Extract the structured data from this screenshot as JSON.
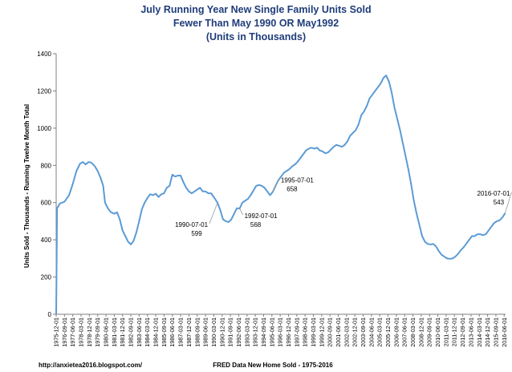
{
  "chart_data": {
    "type": "line",
    "title": [
      "July Running Year New Single Family Units Sold",
      "Fewer Than May 1990 OR May1992",
      "(Units in Thousands)"
    ],
    "ylabel": "Units Sold - Thousands - Running Twelve Month Total",
    "xlabel": "FRED Data New Home Sold - 1975-2016",
    "source_credit": "http://anxietea2016.blogspot.com/",
    "ylim": [
      0,
      1400
    ],
    "yticks": [
      "0",
      "200",
      "400",
      "600",
      "800",
      "1000",
      "1200",
      "1400"
    ],
    "grid": false,
    "xticks": [
      "1975-12-01",
      "1976-09-01",
      "1977-06-01",
      "1978-03-01",
      "1978-12-01",
      "1979-09-01",
      "1980-06-01",
      "1981-03-01",
      "1981-12-01",
      "1982-09-01",
      "1983-06-01",
      "1984-03-01",
      "1984-12-01",
      "1985-09-01",
      "1986-06-01",
      "1987-03-01",
      "1987-12-01",
      "1988-09-01",
      "1989-06-01",
      "1990-03-01",
      "1990-12-01",
      "1991-09-01",
      "1992-06-01",
      "1993-03-01",
      "1993-12-01",
      "1994-09-01",
      "1995-06-01",
      "1996-03-01",
      "1996-12-01",
      "1997-09-01",
      "1998-06-01",
      "1999-03-01",
      "1999-12-01",
      "2000-09-01",
      "2001-06-01",
      "2002-03-01",
      "2002-12-01",
      "2003-09-01",
      "2004-06-01",
      "2005-03-01",
      "2005-12-01",
      "2006-09-01",
      "2007-06-01",
      "2008-03-01",
      "2008-12-01",
      "2009-09-01",
      "2010-06-01",
      "2011-03-01",
      "2011-12-01",
      "2012-09-01",
      "2013-06-01",
      "2014-03-01",
      "2014-12-01",
      "2015-09-01",
      "2016-06-01"
    ],
    "series": [
      {
        "color": "#5b9bd5",
        "points": [
          [
            "1975-12",
            0
          ],
          [
            "1976-01",
            570
          ],
          [
            "1976-04",
            595
          ],
          [
            "1976-09",
            605
          ],
          [
            "1977-02",
            640
          ],
          [
            "1977-06",
            700
          ],
          [
            "1977-10",
            770
          ],
          [
            "1978-02",
            810
          ],
          [
            "1978-05",
            818
          ],
          [
            "1978-08",
            805
          ],
          [
            "1978-11",
            818
          ],
          [
            "1979-02",
            815
          ],
          [
            "1979-06",
            795
          ],
          [
            "1979-09",
            770
          ],
          [
            "1979-12",
            735
          ],
          [
            "1980-03",
            690
          ],
          [
            "1980-05",
            600
          ],
          [
            "1980-08",
            570
          ],
          [
            "1980-11",
            550
          ],
          [
            "1981-03",
            540
          ],
          [
            "1981-06",
            548
          ],
          [
            "1981-09",
            510
          ],
          [
            "1981-12",
            450
          ],
          [
            "1982-03",
            420
          ],
          [
            "1982-06",
            390
          ],
          [
            "1982-09",
            375
          ],
          [
            "1982-12",
            395
          ],
          [
            "1983-03",
            440
          ],
          [
            "1983-06",
            500
          ],
          [
            "1983-09",
            565
          ],
          [
            "1983-12",
            600
          ],
          [
            "1984-03",
            625
          ],
          [
            "1984-06",
            645
          ],
          [
            "1984-09",
            640
          ],
          [
            "1984-12",
            648
          ],
          [
            "1985-03",
            630
          ],
          [
            "1985-06",
            645
          ],
          [
            "1985-09",
            650
          ],
          [
            "1985-12",
            680
          ],
          [
            "1986-03",
            690
          ],
          [
            "1986-06",
            750
          ],
          [
            "1986-09",
            740
          ],
          [
            "1986-12",
            745
          ],
          [
            "1987-03",
            745
          ],
          [
            "1987-06",
            710
          ],
          [
            "1987-09",
            680
          ],
          [
            "1987-12",
            660
          ],
          [
            "1988-03",
            650
          ],
          [
            "1988-06",
            660
          ],
          [
            "1988-09",
            670
          ],
          [
            "1988-12",
            680
          ],
          [
            "1989-03",
            660
          ],
          [
            "1989-06",
            660
          ],
          [
            "1989-09",
            650
          ],
          [
            "1989-12",
            650
          ],
          [
            "1990-03",
            630
          ],
          [
            "1990-07",
            599
          ],
          [
            "1990-10",
            560
          ],
          [
            "1991-01",
            510
          ],
          [
            "1991-04",
            500
          ],
          [
            "1991-07",
            495
          ],
          [
            "1991-10",
            510
          ],
          [
            "1992-01",
            540
          ],
          [
            "1992-04",
            570
          ],
          [
            "1992-07",
            568
          ],
          [
            "1992-10",
            600
          ],
          [
            "1993-01",
            610
          ],
          [
            "1993-04",
            620
          ],
          [
            "1993-07",
            640
          ],
          [
            "1993-10",
            665
          ],
          [
            "1994-01",
            690
          ],
          [
            "1994-04",
            695
          ],
          [
            "1994-07",
            690
          ],
          [
            "1994-10",
            680
          ],
          [
            "1995-01",
            660
          ],
          [
            "1995-04",
            640
          ],
          [
            "1995-07",
            658
          ],
          [
            "1995-10",
            690
          ],
          [
            "1996-01",
            720
          ],
          [
            "1996-04",
            740
          ],
          [
            "1996-07",
            760
          ],
          [
            "1996-10",
            770
          ],
          [
            "1997-01",
            780
          ],
          [
            "1997-04",
            795
          ],
          [
            "1997-07",
            805
          ],
          [
            "1997-10",
            820
          ],
          [
            "1998-01",
            840
          ],
          [
            "1998-04",
            860
          ],
          [
            "1998-07",
            880
          ],
          [
            "1998-10",
            890
          ],
          [
            "1999-01",
            895
          ],
          [
            "1999-04",
            890
          ],
          [
            "1999-07",
            895
          ],
          [
            "1999-10",
            880
          ],
          [
            "2000-01",
            875
          ],
          [
            "2000-04",
            865
          ],
          [
            "2000-07",
            870
          ],
          [
            "2000-10",
            885
          ],
          [
            "2001-01",
            900
          ],
          [
            "2001-04",
            910
          ],
          [
            "2001-07",
            905
          ],
          [
            "2001-10",
            900
          ],
          [
            "2002-01",
            910
          ],
          [
            "2002-04",
            930
          ],
          [
            "2002-07",
            960
          ],
          [
            "2002-10",
            975
          ],
          [
            "2003-01",
            990
          ],
          [
            "2003-04",
            1020
          ],
          [
            "2003-07",
            1070
          ],
          [
            "2003-10",
            1090
          ],
          [
            "2004-01",
            1120
          ],
          [
            "2004-04",
            1160
          ],
          [
            "2004-07",
            1180
          ],
          [
            "2004-10",
            1200
          ],
          [
            "2005-01",
            1220
          ],
          [
            "2005-04",
            1240
          ],
          [
            "2005-07",
            1270
          ],
          [
            "2005-10",
            1283
          ],
          [
            "2006-01",
            1250
          ],
          [
            "2006-04",
            1190
          ],
          [
            "2006-07",
            1110
          ],
          [
            "2006-10",
            1050
          ],
          [
            "2007-01",
            990
          ],
          [
            "2007-04",
            920
          ],
          [
            "2007-07",
            850
          ],
          [
            "2007-10",
            780
          ],
          [
            "2008-01",
            700
          ],
          [
            "2008-04",
            610
          ],
          [
            "2008-07",
            540
          ],
          [
            "2008-10",
            480
          ],
          [
            "2009-01",
            420
          ],
          [
            "2009-04",
            390
          ],
          [
            "2009-07",
            378
          ],
          [
            "2009-10",
            375
          ],
          [
            "2010-01",
            378
          ],
          [
            "2010-04",
            365
          ],
          [
            "2010-07",
            340
          ],
          [
            "2010-10",
            320
          ],
          [
            "2011-01",
            310
          ],
          [
            "2011-04",
            300
          ],
          [
            "2011-07",
            298
          ],
          [
            "2011-10",
            300
          ],
          [
            "2012-01",
            310
          ],
          [
            "2012-04",
            325
          ],
          [
            "2012-07",
            345
          ],
          [
            "2012-10",
            360
          ],
          [
            "2013-01",
            380
          ],
          [
            "2013-04",
            400
          ],
          [
            "2013-07",
            420
          ],
          [
            "2013-10",
            420
          ],
          [
            "2014-01",
            430
          ],
          [
            "2014-04",
            430
          ],
          [
            "2014-07",
            425
          ],
          [
            "2014-10",
            430
          ],
          [
            "2015-01",
            450
          ],
          [
            "2015-04",
            470
          ],
          [
            "2015-07",
            490
          ],
          [
            "2015-10",
            500
          ],
          [
            "2016-01",
            505
          ],
          [
            "2016-04",
            520
          ],
          [
            "2016-07",
            543
          ]
        ]
      }
    ],
    "annotations": [
      {
        "date": "1990-07-01",
        "value": "599",
        "at": "1990-07"
      },
      {
        "date": "1992-07-01",
        "value": "568",
        "at": "1992-07"
      },
      {
        "date": "1995-07-01",
        "value": "658",
        "at": "1995-07"
      },
      {
        "date": "2016-07-01",
        "value": "543",
        "at": "2016-07"
      }
    ]
  }
}
